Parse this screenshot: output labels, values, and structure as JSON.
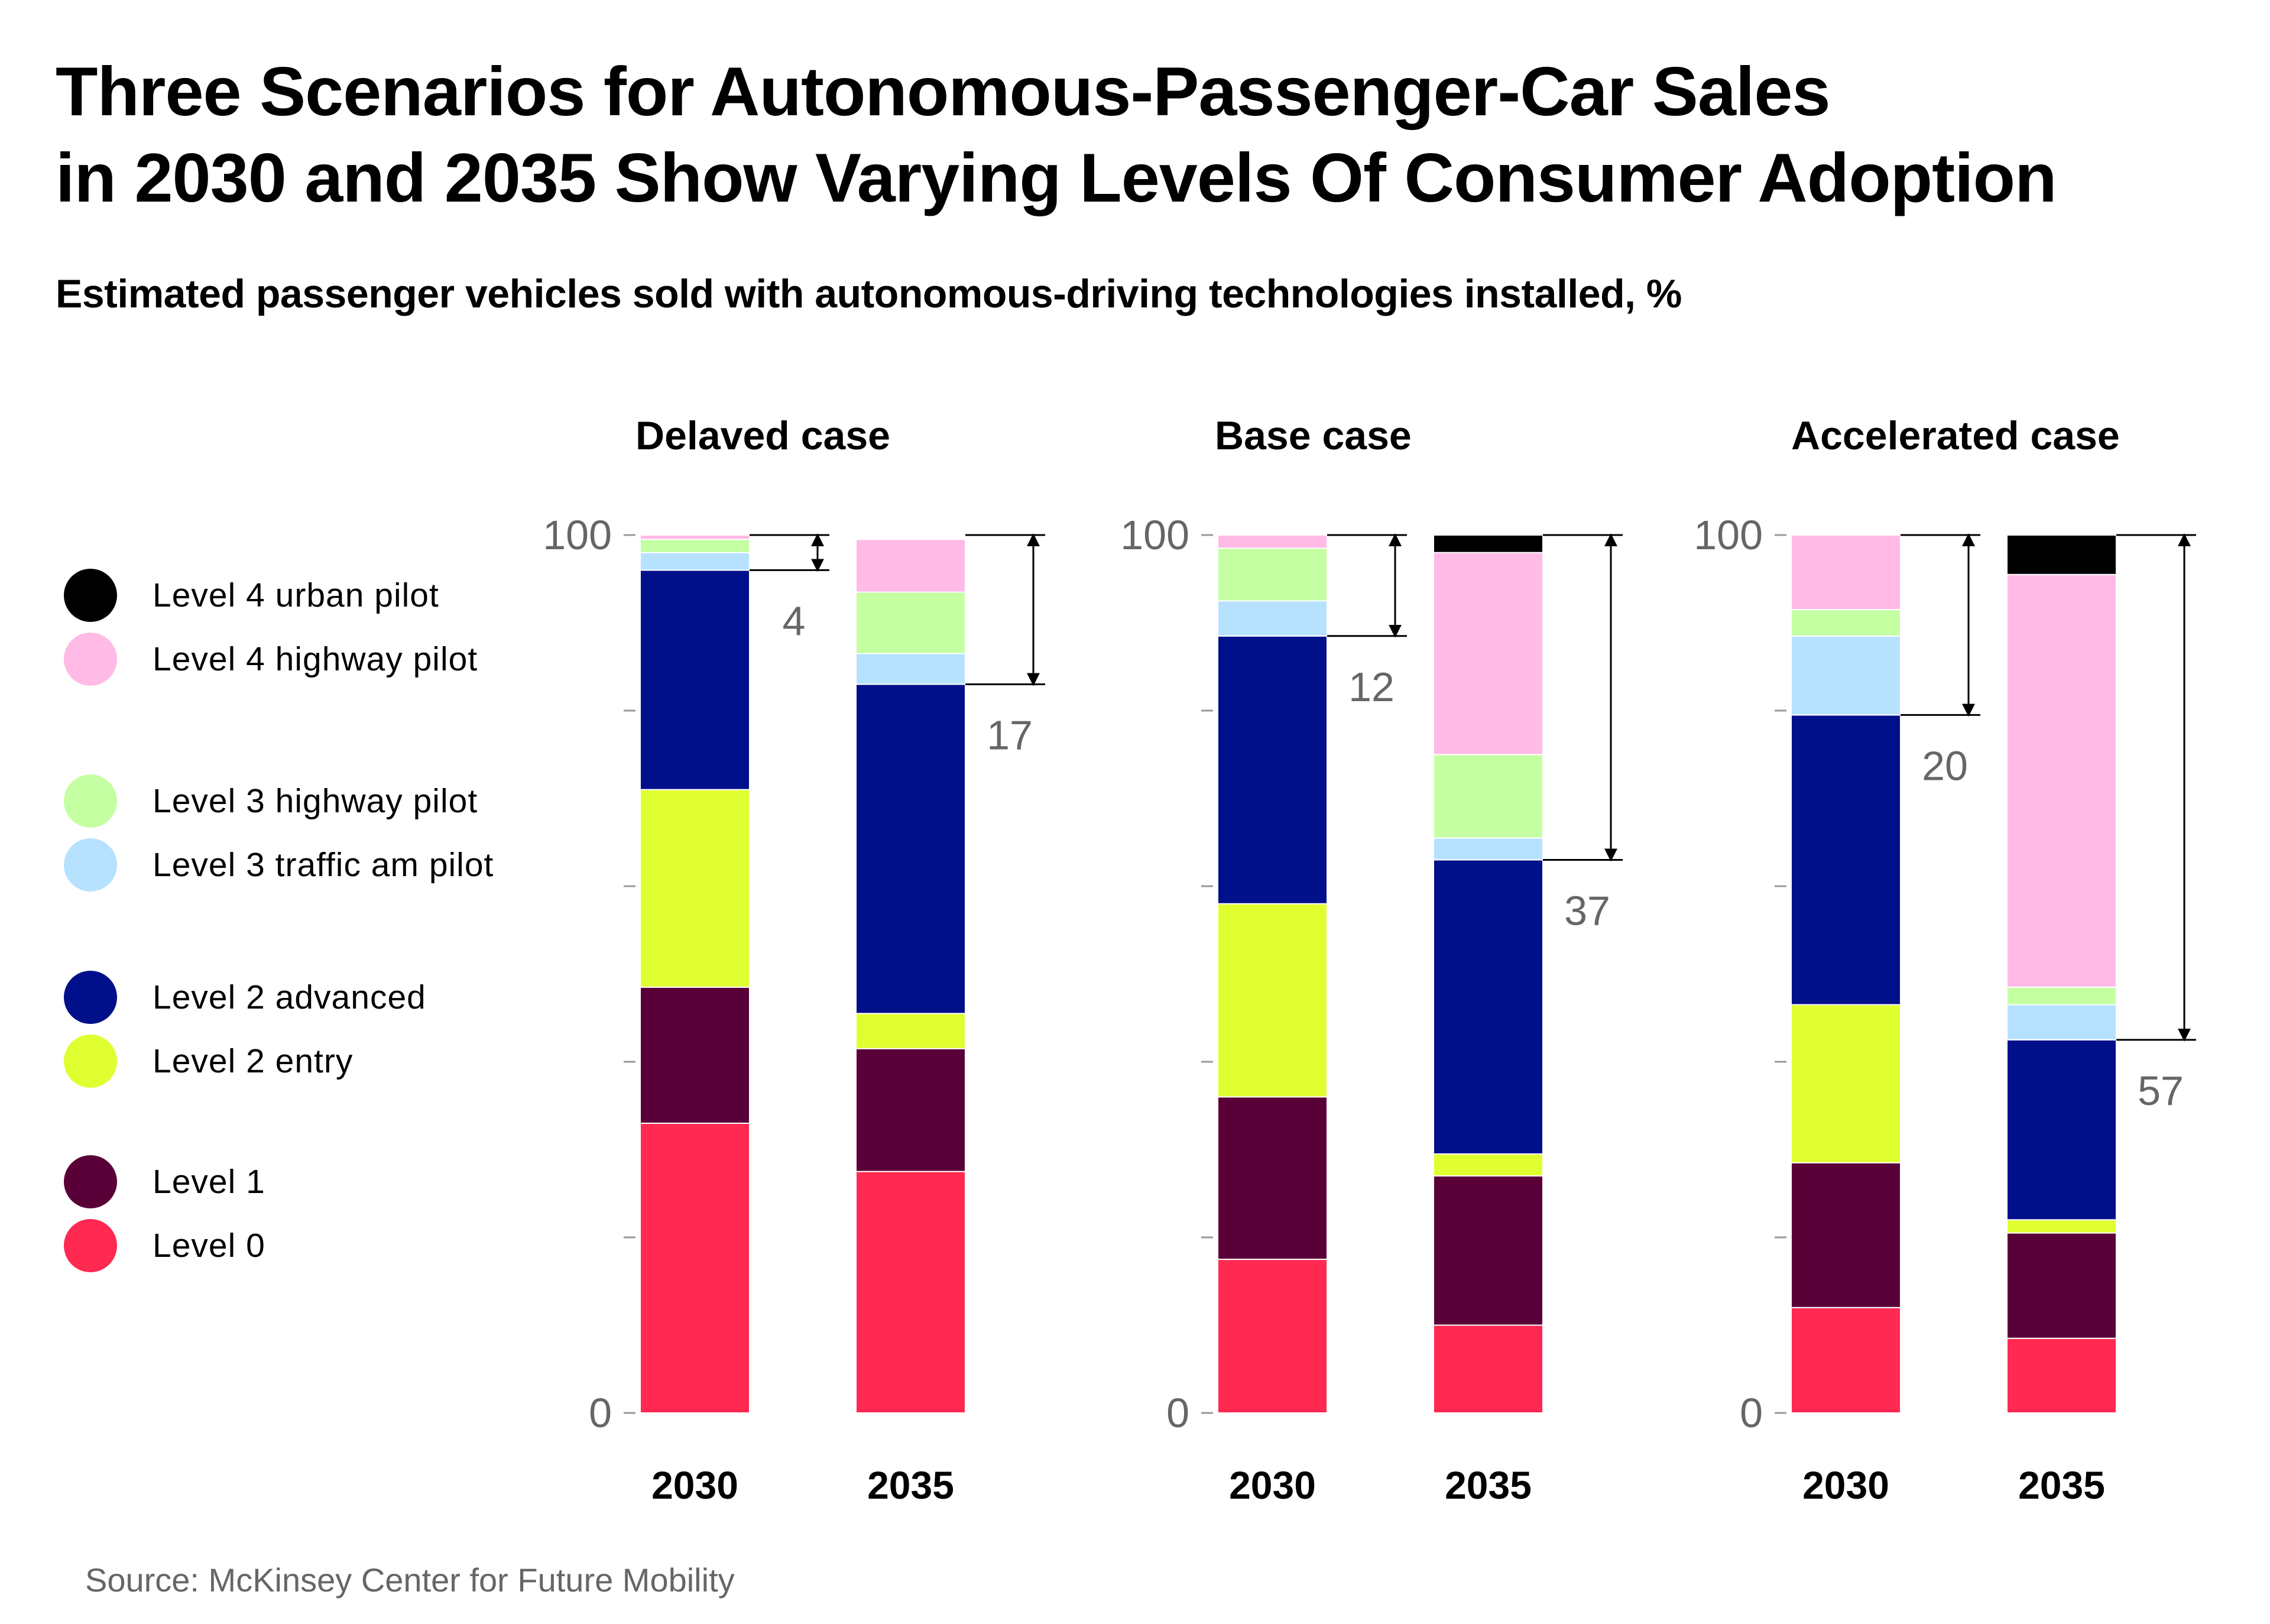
{
  "title_line1": "Three Scenarios for Autonomous-Passenger-Car Sales",
  "title_line2": "in 2030 and 2035 Show Varying Levels Of Consumer Adoption",
  "subtitle": "Estimated passenger vehicles sold with autonomous-driving technologies installed, %",
  "source": "Source: McKinsey Center for Future Mobility",
  "legend": [
    {
      "label": "Level 4 urban pilot",
      "color": "#000000"
    },
    {
      "label": "Level 4 highway pilot",
      "color": "#FFBAE6"
    },
    {
      "label": "Level 3 highway pilot",
      "color": "#C4FFA2"
    },
    {
      "label": "Level 3 traffic am pilot",
      "color": "#B6E2FF"
    },
    {
      "label": "Level 2 advanced",
      "color": "#000F8A"
    },
    {
      "label": "Level 2 entry",
      "color": "#E0FF30"
    },
    {
      "label": "Level 1",
      "color": "#5A0038"
    },
    {
      "label": "Level 0",
      "color": "#FF2951"
    }
  ],
  "chart_data": [
    {
      "type": "bar",
      "stacked": true,
      "title": "Delaved case",
      "categories": [
        "2030",
        "2035"
      ],
      "ylim": [
        0,
        100
      ],
      "yticks": [
        "0",
        "100"
      ],
      "series": [
        {
          "name": "Level 0",
          "values": [
            33,
            27.5
          ]
        },
        {
          "name": "Level 1",
          "values": [
            15.5,
            14
          ]
        },
        {
          "name": "Level 2 entry",
          "values": [
            22.5,
            4
          ]
        },
        {
          "name": "Level 2 advanced",
          "values": [
            25,
            37.5
          ]
        },
        {
          "name": "Level 3 traffic am pilot",
          "values": [
            2,
            3.5
          ]
        },
        {
          "name": "Level 3 highway pilot",
          "values": [
            1.5,
            7
          ]
        },
        {
          "name": "Level 4 highway pilot",
          "values": [
            0.5,
            6
          ]
        },
        {
          "name": "Level 4 urban pilot",
          "values": [
            0,
            0
          ]
        }
      ],
      "bracket_values": [
        "4",
        "17"
      ]
    },
    {
      "type": "bar",
      "stacked": true,
      "title": "Base case",
      "categories": [
        "2030",
        "2035"
      ],
      "ylim": [
        0,
        100
      ],
      "yticks": [
        "0",
        "100"
      ],
      "series": [
        {
          "name": "Level 0",
          "values": [
            17.5,
            10
          ]
        },
        {
          "name": "Level 1",
          "values": [
            18.5,
            17
          ]
        },
        {
          "name": "Level 2 entry",
          "values": [
            22,
            2.5
          ]
        },
        {
          "name": "Level 2 advanced",
          "values": [
            30.5,
            33.5
          ]
        },
        {
          "name": "Level 3 traffic am pilot",
          "values": [
            4,
            2.5
          ]
        },
        {
          "name": "Level 3 highway pilot",
          "values": [
            6,
            9.5
          ]
        },
        {
          "name": "Level 4 highway pilot",
          "values": [
            1.5,
            23
          ]
        },
        {
          "name": "Level 4 urban pilot",
          "values": [
            0,
            2
          ]
        }
      ],
      "bracket_values": [
        "12",
        "37"
      ]
    },
    {
      "type": "bar",
      "stacked": true,
      "title": "Accelerated case",
      "categories": [
        "2030",
        "2035"
      ],
      "ylim": [
        0,
        100
      ],
      "yticks": [
        "0",
        "100"
      ],
      "series": [
        {
          "name": "Level 0",
          "values": [
            12,
            8.5
          ]
        },
        {
          "name": "Level 1",
          "values": [
            16.5,
            12
          ]
        },
        {
          "name": "Level 2 entry",
          "values": [
            18,
            1.5
          ]
        },
        {
          "name": "Level 2 advanced",
          "values": [
            33,
            20.5
          ]
        },
        {
          "name": "Level 3 traffic am pilot",
          "values": [
            9,
            4
          ]
        },
        {
          "name": "Level 3 highway pilot",
          "values": [
            3,
            2
          ]
        },
        {
          "name": "Level 4 highway pilot",
          "values": [
            8.5,
            47
          ]
        },
        {
          "name": "Level 4 urban pilot",
          "values": [
            0,
            4.5
          ]
        }
      ],
      "bracket_values": [
        "20",
        "57"
      ]
    }
  ]
}
